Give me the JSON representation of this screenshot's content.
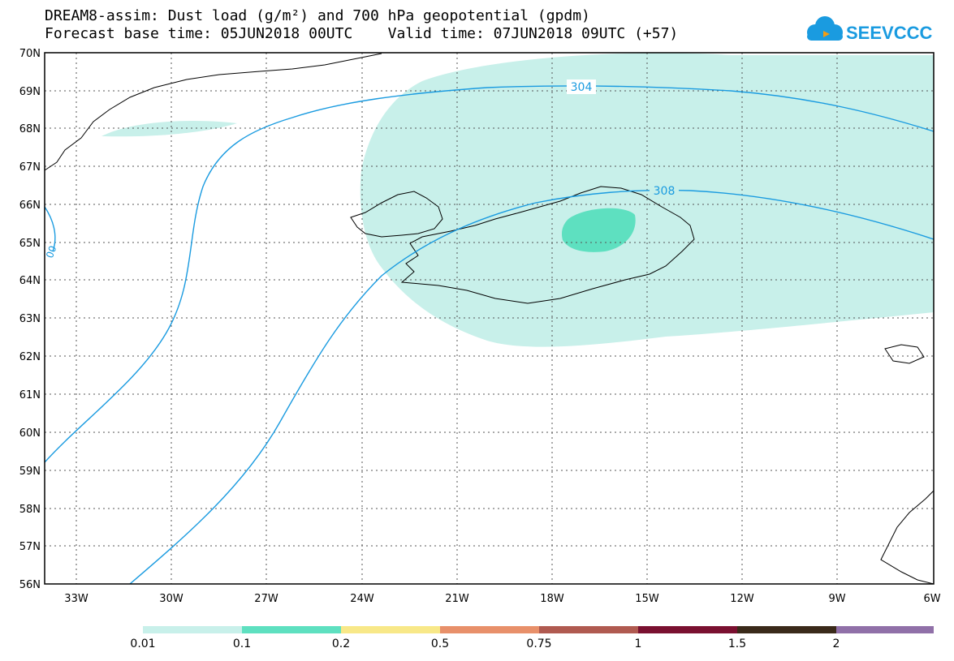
{
  "header": {
    "title_line1": "DREAM8-assim: Dust load (g/m²) and 700 hPa geopotential (gpdm)",
    "title_line2": "Forecast base time: 05JUN2018 00UTC    Valid time: 07JUN2018 09UTC (+57)"
  },
  "logo": {
    "text": "SEEVCCC",
    "icon": "cloud-icon",
    "color": "#1a9be0",
    "accent": "#f39c12"
  },
  "map": {
    "lat_labels": [
      "70N",
      "69N",
      "68N",
      "67N",
      "66N",
      "65N",
      "64N",
      "63N",
      "62N",
      "61N",
      "60N",
      "59N",
      "58N",
      "57N",
      "56N"
    ],
    "lon_labels": [
      "33W",
      "30W",
      "27W",
      "24W",
      "21W",
      "18W",
      "15W",
      "12W",
      "9W",
      "6W"
    ],
    "contour_labels": [
      "304",
      "308",
      "00"
    ],
    "dust_colors": {
      "low": "#c8f0ea",
      "mid": "#5ee0c0"
    },
    "contour_color": "#1a9be0"
  },
  "colorbar": {
    "colors": [
      "#c8f0ea",
      "#5ee0c0",
      "#f8e888",
      "#e8906a",
      "#b05a50",
      "#7a1030",
      "#3a2a1a",
      "#9070a8"
    ],
    "labels": [
      "0.01",
      "0.1",
      "0.2",
      "0.5",
      "0.75",
      "1",
      "1.5",
      "2"
    ]
  }
}
